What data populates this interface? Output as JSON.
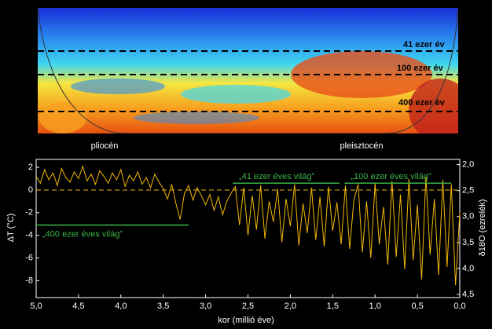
{
  "wavelet": {
    "period_labels": [
      "41 ezer év",
      "100 ezer év",
      "400 ezer év"
    ],
    "epoch_labels": [
      "pliocén",
      "pleisztocén"
    ]
  },
  "chart_data": {
    "type": "line",
    "xlabel": "kor (millió éve)",
    "ylabel": "ΔT (°C)",
    "y2label": "δ18O (ezrelék)",
    "xlim": [
      5.0,
      0.0
    ],
    "xticks": [
      {
        "value": 5.0,
        "label": "5,0"
      },
      {
        "value": 4.5,
        "label": "4,5"
      },
      {
        "value": 4.0,
        "label": "4,0"
      },
      {
        "value": 3.5,
        "label": "3,5"
      },
      {
        "value": 3.0,
        "label": "3,0"
      },
      {
        "value": 2.5,
        "label": "2,5"
      },
      {
        "value": 2.0,
        "label": "2,0"
      },
      {
        "value": 1.5,
        "label": "1,5"
      },
      {
        "value": 1.0,
        "label": "1,0"
      },
      {
        "value": 0.5,
        "label": "0,5"
      },
      {
        "value": 0.0,
        "label": "0,0"
      }
    ],
    "ylim": [
      -9.5,
      2.7
    ],
    "yticks": [
      2,
      0,
      -2,
      -4,
      -6,
      -8
    ],
    "y2lim": [
      4.56,
      1.9
    ],
    "y2ticks": [
      {
        "value": 2.0,
        "label": "2,0"
      },
      {
        "value": 2.5,
        "label": "2,5"
      },
      {
        "value": 3.0,
        "label": "3,0"
      },
      {
        "value": 3.5,
        "label": "3,5"
      },
      {
        "value": 4.0,
        "label": "4,0"
      },
      {
        "value": 4.5,
        "label": "4,5"
      }
    ],
    "hline": 0,
    "color": "#f2b705",
    "x": [
      5.0,
      4.95,
      4.9,
      4.85,
      4.8,
      4.75,
      4.7,
      4.65,
      4.6,
      4.55,
      4.5,
      4.45,
      4.4,
      4.35,
      4.3,
      4.25,
      4.2,
      4.15,
      4.1,
      4.05,
      4.0,
      3.95,
      3.9,
      3.85,
      3.8,
      3.75,
      3.7,
      3.65,
      3.6,
      3.55,
      3.5,
      3.45,
      3.4,
      3.35,
      3.3,
      3.25,
      3.2,
      3.15,
      3.1,
      3.05,
      3.0,
      2.95,
      2.9,
      2.85,
      2.8,
      2.75,
      2.7,
      2.65,
      2.6,
      2.55,
      2.5,
      2.45,
      2.4,
      2.35,
      2.3,
      2.25,
      2.2,
      2.15,
      2.1,
      2.05,
      2.0,
      1.95,
      1.9,
      1.85,
      1.8,
      1.75,
      1.7,
      1.65,
      1.6,
      1.55,
      1.5,
      1.45,
      1.4,
      1.35,
      1.3,
      1.25,
      1.2,
      1.15,
      1.1,
      1.05,
      1.0,
      0.95,
      0.9,
      0.85,
      0.8,
      0.75,
      0.7,
      0.65,
      0.6,
      0.55,
      0.5,
      0.45,
      0.4,
      0.35,
      0.3,
      0.25,
      0.2,
      0.15,
      0.1,
      0.05,
      0.0
    ],
    "values": [
      1.2,
      0.6,
      1.8,
      0.9,
      1.5,
      0.4,
      1.9,
      1.1,
      0.7,
      1.6,
      1.0,
      2.1,
      0.8,
      1.4,
      0.5,
      1.7,
      1.2,
      0.6,
      1.5,
      0.9,
      1.8,
      0.3,
      1.3,
      0.8,
      1.6,
      0.5,
      1.1,
      0.2,
      1.4,
      0.7,
      0.1,
      -0.8,
      0.5,
      -1.2,
      -2.6,
      -0.3,
      0.4,
      -0.9,
      0.2,
      -0.5,
      -1.3,
      -0.4,
      -1.8,
      -0.6,
      -2.2,
      -1.0,
      -0.3,
      0.3,
      -3.1,
      0.2,
      -4.0,
      -0.5,
      -3.5,
      0.4,
      -4.3,
      -1.0,
      -2.8,
      0.1,
      -4.6,
      -0.8,
      -3.2,
      0.5,
      -4.9,
      -1.2,
      -3.8,
      0.2,
      -4.4,
      -0.6,
      -5.0,
      0.3,
      -3.6,
      -1.1,
      -4.8,
      0.4,
      -5.2,
      -0.9,
      0.5,
      -5.5,
      -1.0,
      -6.0,
      0.6,
      -4.8,
      -1.5,
      -6.6,
      0.8,
      -5.9,
      -0.4,
      -7.0,
      1.0,
      -6.2,
      -1.3,
      -7.9,
      1.2,
      -5.7,
      -0.8,
      -7.5,
      0.9,
      -6.8,
      0.5,
      -8.4,
      -2.0
    ],
    "annotations": [
      {
        "label": "„41 ezer éves világ”",
        "x": [
          2.68,
          1.42
        ],
        "y": 0.6,
        "color": "#3db54a"
      },
      {
        "label": "„100 ezer éves világ”",
        "x": [
          1.36,
          0.1
        ],
        "y": 0.6,
        "color": "#3db54a"
      },
      {
        "label": "„400 ezer éves világ”",
        "x": [
          5.0,
          3.2
        ],
        "y": -3.1,
        "color": "#3db54a"
      }
    ]
  }
}
